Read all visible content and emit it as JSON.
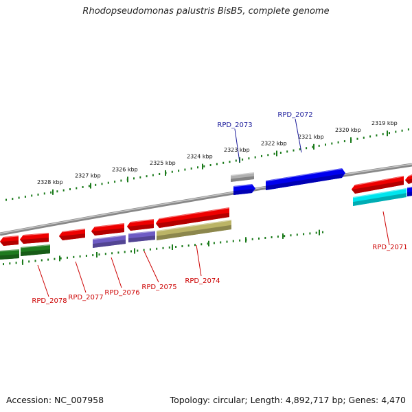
{
  "title": "Rhodopseudomonas palustris BisB5, complete genome",
  "footer": {
    "accession": "Accession: NC_007958",
    "topology": "Topology: circular; Length: 4,892,717 bp; Genes: 4,470"
  },
  "ruler": {
    "ticks": [
      "2328 kbp",
      "2327 kbp",
      "2326 kbp",
      "2325 kbp",
      "2324 kbp",
      "2323 kbp",
      "2322 kbp",
      "2321 kbp",
      "2320 kbp",
      "2319 kbp"
    ],
    "tick_color": "#1a7a1a"
  },
  "backbone_color": "#888888",
  "features": [
    {
      "label": "RPD_2073",
      "color": "#0000ee",
      "label_color": "#1a1a9a"
    },
    {
      "label": "RPD_2072",
      "color": "#0000ee",
      "label_color": "#1a1a9a"
    },
    {
      "label": "RPD_2071",
      "color": "#ee0000",
      "label_color": "#cc0000"
    },
    {
      "label": "RPD_2074",
      "color": "#bbb466",
      "label_color": "#cc0000"
    },
    {
      "label": "RPD_2075",
      "color": "#6e5cc4",
      "label_color": "#cc0000"
    },
    {
      "label": "RPD_2076",
      "color": "#6e5cc4",
      "label_color": "#cc0000"
    },
    {
      "label": "RPD_2077",
      "color": "#ee0000",
      "label_color": "#cc0000"
    },
    {
      "label": "RPD_2078",
      "color": "#1e7a1e",
      "label_color": "#cc0000"
    }
  ],
  "gene_colors": {
    "red": "#ee0000",
    "blue": "#0000ee",
    "grey": "#b0b0b0",
    "cyan": "#00e5ee",
    "olive": "#bbb466",
    "purple": "#6e5cc4",
    "green": "#1e7a1e"
  }
}
